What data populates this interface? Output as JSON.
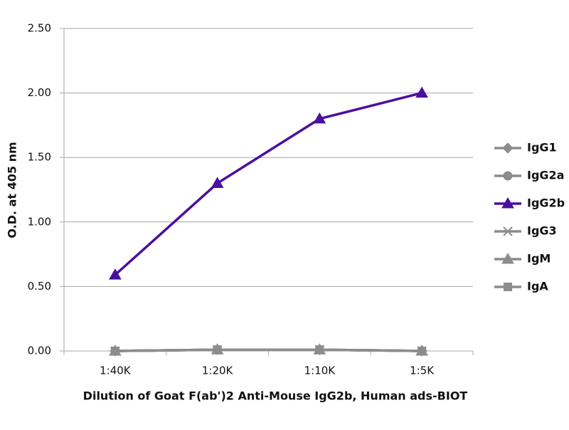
{
  "chart_data": {
    "type": "line",
    "x_label": "Dilution of Goat F(ab')2 Anti-Mouse IgG2b, Human ads-BIOT",
    "y_label": "O.D. at 405 nm",
    "categories": [
      "1:40K",
      "1:20K",
      "1:10K",
      "1:5K"
    ],
    "ylim": [
      0,
      2.5
    ],
    "yticks": [
      {
        "value": 0,
        "label": "0.00"
      },
      {
        "value": 0.5,
        "label": "0.50"
      },
      {
        "value": 1,
        "label": "1.00"
      },
      {
        "value": 1.5,
        "label": "1.50"
      },
      {
        "value": 2,
        "label": "2.00"
      },
      {
        "value": 2.5,
        "label": "2.50"
      }
    ],
    "grid": true,
    "legend": "right",
    "series": [
      {
        "name": "IgG1",
        "color": "#8c8c8c",
        "marker": "diamond",
        "values": [
          0.0,
          0.01,
          0.01,
          0.0
        ]
      },
      {
        "name": "IgG2a",
        "color": "#8c8c8c",
        "marker": "circle",
        "values": [
          0.0,
          0.01,
          0.01,
          0.0
        ]
      },
      {
        "name": "IgG3",
        "color": "#8c8c8c",
        "marker": "x",
        "values": [
          0.0,
          0.01,
          0.01,
          0.0
        ]
      },
      {
        "name": "IgM",
        "color": "#8c8c8c",
        "marker": "triangle",
        "values": [
          0.0,
          0.01,
          0.01,
          0.0
        ]
      },
      {
        "name": "IgA",
        "color": "#8c8c8c",
        "marker": "square",
        "values": [
          0.0,
          0.01,
          0.01,
          0.0
        ]
      },
      {
        "name": "IgG2b",
        "color": "#4b0fa0",
        "marker": "triangle",
        "values": [
          0.59,
          1.3,
          1.8,
          2.0
        ]
      }
    ]
  }
}
